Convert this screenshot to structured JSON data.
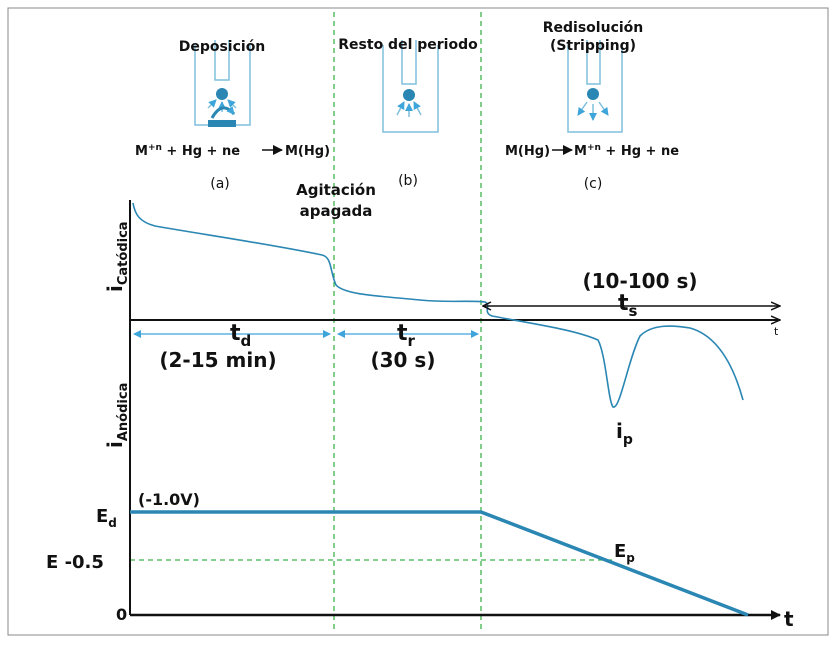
{
  "labels": {
    "deposition": "Deposición",
    "rest": "Resto del periodo",
    "stripping": [
      "Redisolución",
      "(Stripping)"
    ],
    "a": "(a)",
    "b": "(b)",
    "c": "(c)",
    "stirring": [
      "Agitación",
      "apagada"
    ]
  },
  "equations": {
    "deposition": {
      "left": [
        "M",
        "+n",
        " + Hg + ne"
      ],
      "right": "M(Hg)"
    },
    "stripping": {
      "left": "M(Hg)",
      "right": [
        "M",
        "+n",
        " + Hg + ne"
      ]
    }
  },
  "current_plot": {
    "y_cathodic": {
      "main": "i",
      "sub": "Catódica"
    },
    "y_anodic": {
      "main": "i",
      "sub": "Anódica"
    },
    "x": "t",
    "peak": {
      "main": "i",
      "sub": "p"
    },
    "td": {
      "main": "t",
      "sub": "d",
      "duration": "(2-15 min)"
    },
    "tr": {
      "main": "t",
      "sub": "r",
      "duration": "(30 s)"
    },
    "ts": {
      "main": "t",
      "sub": "s",
      "duration": "(10-100 s)"
    }
  },
  "potential_plot": {
    "ed": {
      "main": "E",
      "sub": "d"
    },
    "ed_value": "(-1.0V)",
    "e_mid": "E -0.5",
    "ep": {
      "main": "E",
      "sub": "p"
    },
    "zero": "0",
    "x": "t"
  }
}
